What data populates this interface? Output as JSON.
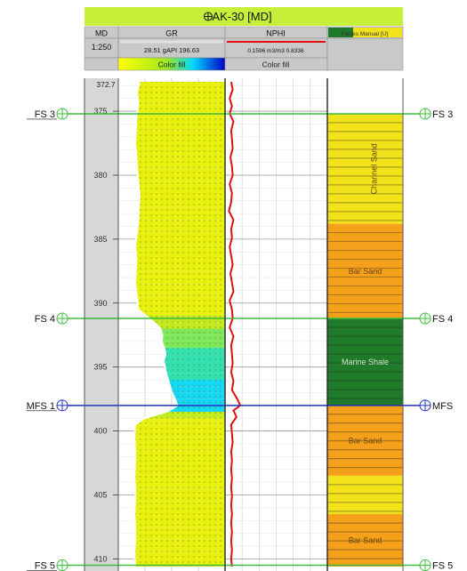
{
  "chart_data": {
    "type": "well-log",
    "title": "AK-30 [MD]",
    "title_icon": "crosshair-icon",
    "columns": [
      {
        "key": "md",
        "name": "MD",
        "scale_text": "1:250"
      },
      {
        "key": "gr",
        "name": "GR",
        "range_text": "28.51 gAPI 196.63",
        "fill_label": "Color fill",
        "min": 28.51,
        "max": 196.63,
        "unit": "gAPI"
      },
      {
        "key": "nphi",
        "name": "NPHI",
        "range_text": "0.1596 m3/m3 0.8336",
        "fill_label": "Color fill",
        "min": 0.1596,
        "max": 0.8336,
        "unit": "m3/m3"
      },
      {
        "key": "facies",
        "name": "Facies Manual [U]"
      }
    ],
    "depth_range": [
      372.7,
      410.6
    ],
    "depth_top_label": "372.7",
    "depth_ticks": [
      375,
      380,
      385,
      390,
      395,
      400,
      405,
      410
    ],
    "markers": [
      {
        "name": "FS 3",
        "right_label": "FS 3",
        "depth": 375.2,
        "color": "#3dbb3d"
      },
      {
        "name": "FS 4",
        "right_label": "FS 4",
        "depth": 391.2,
        "color": "#3dbb3d"
      },
      {
        "name": "MFS 1",
        "right_label": "MFS",
        "depth": 398.0,
        "color": "#2233bb"
      },
      {
        "name": "FS 5",
        "right_label": "FS 5",
        "depth": 410.5,
        "color": "#3dbb3d"
      }
    ],
    "facies": [
      {
        "label": "Channel Sand",
        "top": 375.2,
        "base": 383.8,
        "color": "#f2e21c",
        "vertical": true
      },
      {
        "label": "Bar Sand",
        "top": 383.8,
        "base": 391.2,
        "color": "#f5a01a",
        "vertical": false
      },
      {
        "label": "Marine Shale",
        "top": 391.2,
        "base": 398.0,
        "color": "#1f7a2a",
        "vertical": false
      },
      {
        "label": "Bar Sand",
        "top": 398.0,
        "base": 403.5,
        "color": "#f5a01a",
        "vertical": false
      },
      {
        "label": "",
        "top": 403.5,
        "base": 406.5,
        "color": "#f2e21c",
        "vertical": false
      },
      {
        "label": "Bar Sand",
        "top": 406.5,
        "base": 410.6,
        "color": "#f5a01a",
        "vertical": false
      }
    ],
    "gr": {
      "depth": [
        372.7,
        373.5,
        374.5,
        375.5,
        376.5,
        377.5,
        378.5,
        379.5,
        380.5,
        381.5,
        382.5,
        383.5,
        384.5,
        385.5,
        386.5,
        387.5,
        388.5,
        389.5,
        390.5,
        391.0,
        391.5,
        392.0,
        392.5,
        393.0,
        393.5,
        394.0,
        394.5,
        395.0,
        395.5,
        396.0,
        396.5,
        397.0,
        397.5,
        398.0,
        398.5,
        399.0,
        399.5,
        400.5,
        401.5,
        402.5,
        403.5,
        404.5,
        405.5,
        406.5,
        407.5,
        408.5,
        409.5,
        410.6
      ],
      "values": [
        62,
        58,
        60,
        57,
        56,
        55,
        57,
        58,
        60,
        62,
        61,
        60,
        58,
        55,
        57,
        56,
        55,
        58,
        60,
        72,
        85,
        95,
        98,
        97,
        101,
        103,
        100,
        102,
        104,
        107,
        110,
        113,
        118,
        122,
        105,
        70,
        55,
        54,
        55,
        55,
        54,
        55,
        55,
        54,
        55,
        55,
        54,
        55
      ]
    },
    "nphi": {
      "depth": [
        372.7,
        373.3,
        374.0,
        374.6,
        375.2,
        375.8,
        376.5,
        377.2,
        377.9,
        378.6,
        379.3,
        380.0,
        380.7,
        381.4,
        382.1,
        382.8,
        383.5,
        384.2,
        384.9,
        385.6,
        386.3,
        387.0,
        387.7,
        388.4,
        389.1,
        389.8,
        390.5,
        391.2,
        391.9,
        392.6,
        393.3,
        394.0,
        394.7,
        395.4,
        396.1,
        396.8,
        397.5,
        398.0,
        398.4,
        398.9,
        399.5,
        400.2,
        400.9,
        401.6,
        402.3,
        403.0,
        403.7,
        404.4,
        405.1,
        405.8,
        406.5,
        407.2,
        407.9,
        408.6,
        409.3,
        410.0,
        410.6
      ],
      "values": [
        0.2,
        0.21,
        0.19,
        0.205,
        0.19,
        0.215,
        0.2,
        0.205,
        0.21,
        0.195,
        0.205,
        0.21,
        0.19,
        0.205,
        0.2,
        0.185,
        0.215,
        0.2,
        0.205,
        0.19,
        0.2,
        0.21,
        0.195,
        0.205,
        0.215,
        0.19,
        0.205,
        0.21,
        0.19,
        0.215,
        0.2,
        0.205,
        0.21,
        0.2,
        0.215,
        0.205,
        0.24,
        0.26,
        0.215,
        0.235,
        0.2,
        0.205,
        0.21,
        0.2,
        0.205,
        0.2,
        0.205,
        0.2,
        0.205,
        0.2,
        0.205,
        0.2,
        0.205,
        0.2,
        0.205,
        0.2,
        0.205
      ]
    },
    "colors": {
      "header_green": "#c6ef3a",
      "header_gray": "#c9c9c9",
      "md_track_bg": "#d7d7d7",
      "gr_curve": "#ffffff",
      "nphi_curve": "#e01010",
      "facies_lines": "#222222"
    },
    "legend_icons": [
      "crosshair-icon"
    ],
    "grid": true
  }
}
